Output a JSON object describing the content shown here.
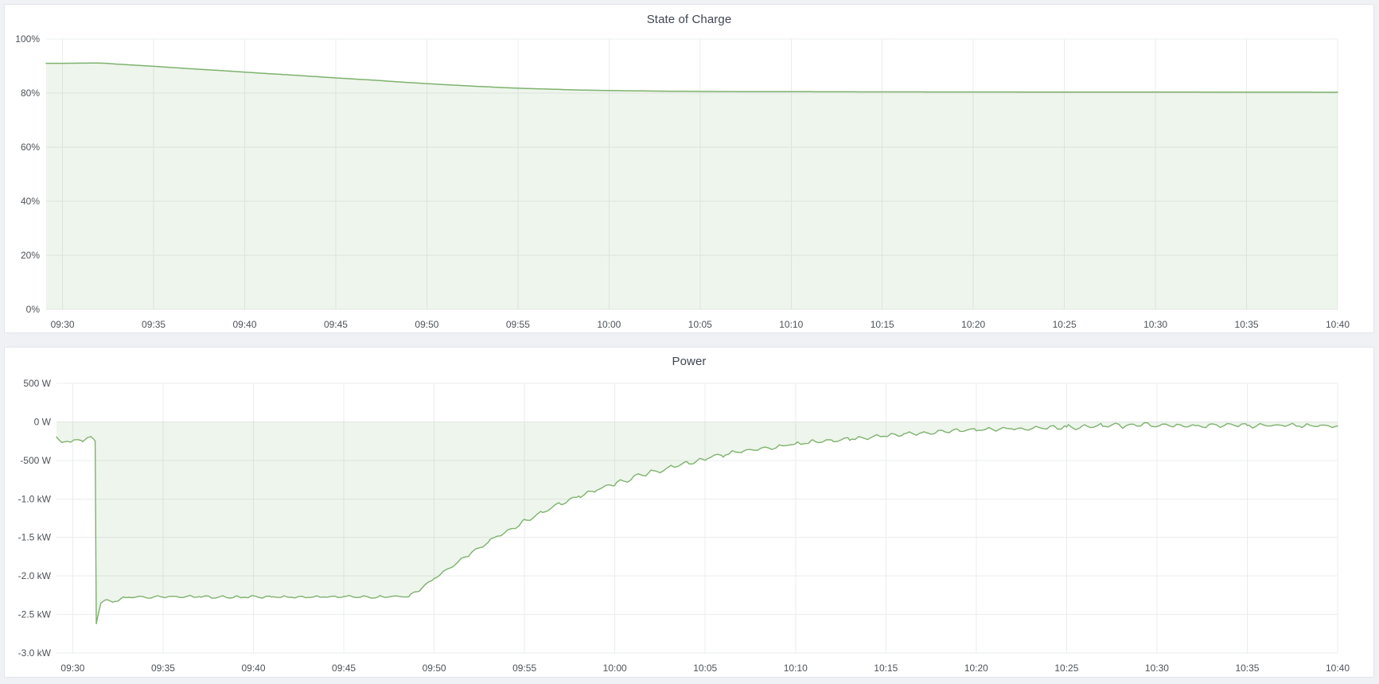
{
  "page": {
    "background_color": "#eff1f5",
    "panel_background": "#ffffff",
    "panel_border_color": "#e2e5eb",
    "grid_color": "#ebecee",
    "axis_text_color": "#4e5257",
    "series_green": "#7EB26D"
  },
  "panels": [
    {
      "title": "State of Charge"
    },
    {
      "title": "Power"
    }
  ],
  "chart_data": [
    {
      "type": "area",
      "title": "State of Charge",
      "unit": "percent",
      "x_axis": "time",
      "x_tick_labels": [
        "09:30",
        "09:35",
        "09:40",
        "09:45",
        "09:50",
        "09:55",
        "10:00",
        "10:05",
        "10:10",
        "10:15",
        "10:20",
        "10:25",
        "10:30",
        "10:35",
        "10:40"
      ],
      "x_tick_interval_minutes": 5,
      "x_domain_minutes_after_0930": [
        -0.9,
        70
      ],
      "ylim": [
        0,
        100
      ],
      "y_ticks": [
        100,
        80,
        60,
        40,
        20,
        0
      ],
      "y_tick_labels": [
        "100%",
        "80%",
        "60%",
        "40%",
        "20%",
        "0%"
      ],
      "grid": true,
      "legend": "none",
      "baseline": 0,
      "line_color": "#7EB26D",
      "line_width": 1.5,
      "fill_color": "rgba(126,178,109,0.13)",
      "points_format": "[minutes_after_09:30, value_percent, noise_amplitude]",
      "points": [
        [
          -0.9,
          91.0,
          0
        ],
        [
          0,
          91.0,
          0
        ],
        [
          1,
          91.05,
          0
        ],
        [
          1.8,
          91.1,
          0
        ],
        [
          2.4,
          91.0,
          0
        ],
        [
          3,
          90.7,
          0
        ],
        [
          4,
          90.3,
          0
        ],
        [
          5,
          89.9,
          0
        ],
        [
          6,
          89.45,
          0
        ],
        [
          7,
          89.0,
          0
        ],
        [
          8,
          88.6,
          0
        ],
        [
          9,
          88.2,
          0
        ],
        [
          10,
          87.75,
          0
        ],
        [
          11,
          87.3,
          0
        ],
        [
          12,
          86.9,
          0
        ],
        [
          13,
          86.5,
          0
        ],
        [
          14,
          86.05,
          0
        ],
        [
          15,
          85.6,
          0
        ],
        [
          16,
          85.2,
          0
        ],
        [
          17,
          84.8,
          0
        ],
        [
          18,
          84.35,
          0
        ],
        [
          19,
          83.9,
          0
        ],
        [
          20,
          83.5,
          0
        ],
        [
          21,
          83.1,
          0
        ],
        [
          22,
          82.75,
          0
        ],
        [
          23,
          82.4,
          0
        ],
        [
          24,
          82.1,
          0
        ],
        [
          25,
          81.8,
          0
        ],
        [
          26,
          81.6,
          0
        ],
        [
          27,
          81.4,
          0
        ],
        [
          28,
          81.2,
          0
        ],
        [
          29,
          81.05,
          0
        ],
        [
          30,
          80.95,
          0
        ],
        [
          31,
          80.85,
          0
        ],
        [
          32,
          80.78,
          0
        ],
        [
          33,
          80.7,
          0
        ],
        [
          34,
          80.65,
          0
        ],
        [
          35,
          80.6,
          0
        ],
        [
          36,
          80.57,
          0
        ],
        [
          38,
          80.52,
          0
        ],
        [
          40,
          80.5,
          0
        ],
        [
          44,
          80.45,
          0
        ],
        [
          48,
          80.42,
          0
        ],
        [
          52,
          80.4,
          0
        ],
        [
          56,
          80.37,
          0
        ],
        [
          60,
          80.35,
          0
        ],
        [
          64,
          80.33,
          0
        ],
        [
          67,
          80.32,
          0
        ],
        [
          70,
          80.3,
          0
        ]
      ]
    },
    {
      "type": "area",
      "title": "Power",
      "unit": "watt",
      "x_axis": "time",
      "x_tick_labels": [
        "09:30",
        "09:35",
        "09:40",
        "09:45",
        "09:50",
        "09:55",
        "10:00",
        "10:05",
        "10:10",
        "10:15",
        "10:20",
        "10:25",
        "10:30",
        "10:35",
        "10:40"
      ],
      "x_tick_interval_minutes": 5,
      "x_domain_minutes_after_0930": [
        -0.9,
        70
      ],
      "ylim": [
        -3000,
        500
      ],
      "y_ticks": [
        500,
        0,
        -500,
        -1000,
        -1500,
        -2000,
        -2500,
        -3000
      ],
      "y_tick_labels": [
        "500 W",
        "0 W",
        "-500 W",
        "-1.0 kW",
        "-1.5 kW",
        "-2.0 kW",
        "-2.5 kW",
        "-3.0 kW"
      ],
      "grid": true,
      "legend": "none",
      "baseline": 0,
      "line_color": "#7EB26D",
      "line_width": 1.4,
      "fill_color": "rgba(126,178,109,0.13)",
      "points_format": "[minutes_after_09:30, value_watts, noise_amplitude_watts]",
      "points": [
        [
          -0.9,
          -200,
          15
        ],
        [
          -0.6,
          -275,
          15
        ],
        [
          -0.3,
          -245,
          15
        ],
        [
          0,
          -250,
          20
        ],
        [
          0.3,
          -235,
          15
        ],
        [
          0.55,
          -250,
          12
        ],
        [
          0.8,
          -205,
          10
        ],
        [
          1.0,
          -195,
          10
        ],
        [
          1.15,
          -225,
          8
        ],
        [
          1.24,
          -250,
          3
        ],
        [
          1.3,
          -2620,
          0
        ],
        [
          1.42,
          -2480,
          10
        ],
        [
          1.55,
          -2350,
          15
        ],
        [
          1.8,
          -2310,
          18
        ],
        [
          2.2,
          -2340,
          18
        ],
        [
          2.8,
          -2290,
          20
        ],
        [
          3.5,
          -2275,
          22
        ],
        [
          5,
          -2270,
          22
        ],
        [
          7,
          -2270,
          22
        ],
        [
          9,
          -2275,
          22
        ],
        [
          11,
          -2270,
          22
        ],
        [
          13,
          -2272,
          22
        ],
        [
          15,
          -2270,
          22
        ],
        [
          17,
          -2272,
          22
        ],
        [
          18.6,
          -2265,
          20
        ],
        [
          19.2,
          -2180,
          20
        ],
        [
          20,
          -2030,
          22
        ],
        [
          21,
          -1870,
          25
        ],
        [
          22,
          -1705,
          28
        ],
        [
          23,
          -1555,
          28
        ],
        [
          24,
          -1420,
          30
        ],
        [
          25,
          -1295,
          32
        ],
        [
          26,
          -1175,
          35
        ],
        [
          27,
          -1065,
          35
        ],
        [
          28,
          -960,
          38
        ],
        [
          29,
          -875,
          38
        ],
        [
          30,
          -800,
          38
        ],
        [
          31,
          -725,
          38
        ],
        [
          32,
          -655,
          38
        ],
        [
          33,
          -595,
          35
        ],
        [
          34,
          -535,
          35
        ],
        [
          35,
          -478,
          35
        ],
        [
          36,
          -425,
          35
        ],
        [
          37,
          -385,
          32
        ],
        [
          38,
          -350,
          32
        ],
        [
          39,
          -318,
          32
        ],
        [
          40,
          -290,
          32
        ],
        [
          41,
          -262,
          32
        ],
        [
          42,
          -240,
          32
        ],
        [
          43,
          -218,
          32
        ],
        [
          44,
          -198,
          32
        ],
        [
          45,
          -178,
          32
        ],
        [
          46,
          -160,
          30
        ],
        [
          47,
          -145,
          30
        ],
        [
          48,
          -130,
          30
        ],
        [
          49,
          -116,
          30
        ],
        [
          50,
          -104,
          30
        ],
        [
          51,
          -94,
          30
        ],
        [
          52,
          -86,
          30
        ],
        [
          53,
          -80,
          32
        ],
        [
          54,
          -74,
          32
        ],
        [
          55,
          -68,
          35
        ],
        [
          56,
          -62,
          38
        ],
        [
          57,
          -56,
          38
        ],
        [
          58,
          -52,
          40
        ],
        [
          59,
          -45,
          40
        ],
        [
          59.3,
          -15,
          20
        ],
        [
          59.6,
          -55,
          35
        ],
        [
          60.5,
          -48,
          38
        ],
        [
          62,
          -50,
          35
        ],
        [
          63.5,
          -45,
          35
        ],
        [
          65,
          -50,
          32
        ],
        [
          66.5,
          -45,
          32
        ],
        [
          68,
          -50,
          30
        ],
        [
          69,
          -48,
          28
        ],
        [
          70,
          -55,
          25
        ]
      ]
    }
  ]
}
